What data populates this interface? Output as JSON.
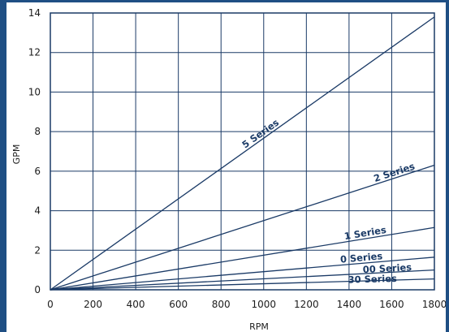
{
  "chart_data": {
    "type": "line",
    "title": "",
    "xlabel": "RPM",
    "ylabel": "GPM",
    "xlim": [
      0,
      1800
    ],
    "ylim": [
      0,
      14
    ],
    "x_ticks": [
      0,
      200,
      400,
      600,
      800,
      1000,
      1200,
      1400,
      1600,
      1800
    ],
    "x_tick_labels": [
      "0",
      "200",
      "400",
      "600",
      "800",
      "1000",
      "1200",
      "1400",
      "1600",
      "1800"
    ],
    "y_ticks": [
      0,
      2,
      4,
      6,
      8,
      10,
      12,
      14
    ],
    "y_tick_labels": [
      "0",
      "2",
      "4",
      "6",
      "8",
      "10",
      "12",
      "14"
    ],
    "grid": true,
    "legend": "none (series labeled inline on lines)",
    "line_color": "#1a3a66",
    "grid_color": "#1a3a66",
    "series": [
      {
        "name": "5 Series",
        "x": [
          0,
          1800
        ],
        "values": [
          0,
          13.8
        ]
      },
      {
        "name": "2 Series",
        "x": [
          0,
          1800
        ],
        "values": [
          0,
          6.3
        ]
      },
      {
        "name": "1 Series",
        "x": [
          0,
          1800
        ],
        "values": [
          0,
          3.15
        ]
      },
      {
        "name": "0 Series",
        "x": [
          0,
          1800
        ],
        "values": [
          0,
          1.65
        ]
      },
      {
        "name": "00 Series",
        "x": [
          0,
          1800
        ],
        "values": [
          0,
          1.0
        ]
      },
      {
        "name": "30 Series",
        "x": [
          0,
          1800
        ],
        "values": [
          0,
          0.55
        ]
      }
    ]
  }
}
